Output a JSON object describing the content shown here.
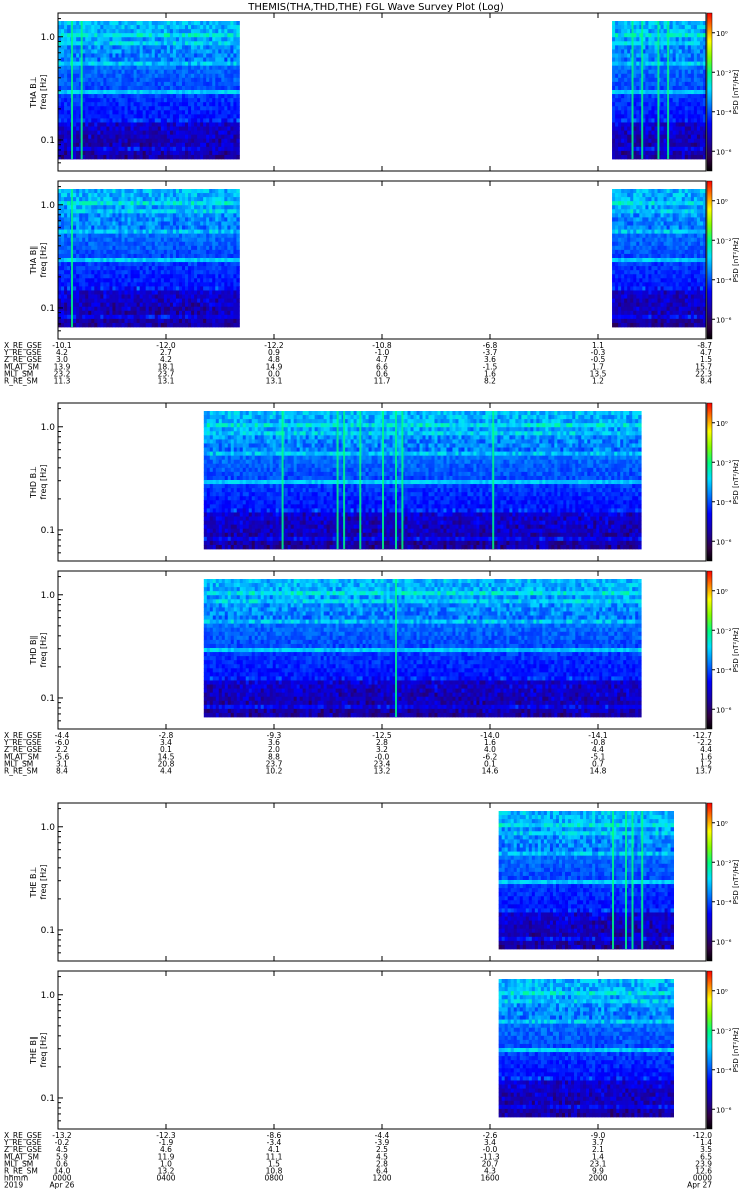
{
  "title": "THEMIS(THA,THD,THE) FGL Wave Survey Plot (Log)",
  "chart_data": {
    "type": "heatmap",
    "title": "THEMIS(THA,THD,THE) FGL Wave Survey Plot (Log)",
    "ylim": [
      0.05,
      1.7
    ],
    "log_y": true,
    "colorbar_lim": [
      1e-07,
      10.0
    ],
    "colorbar_log": true,
    "colorbar_label": "PSD [nT²/Hz]",
    "time_label_row": "hhmm",
    "time_ticks": [
      "0000",
      "0400",
      "0800",
      "1200",
      "1600",
      "2000",
      "0000"
    ],
    "date_labels": {
      "start_year": "2019",
      "start": "Apr 26",
      "end": "Apr 27"
    },
    "groups": [
      {
        "probe": "THA",
        "panels": [
          {
            "label": "THA B⊥",
            "ylabel": "freq [Hz]",
            "yticks": [
              "1.0",
              "0.1"
            ],
            "cbticks": [
              "10⁰",
              "10⁻²",
              "10⁻⁴",
              "10⁻⁶"
            ],
            "data_ranges": [
              [
                0.0,
                0.28
              ],
              [
                0.855,
                1.0
              ]
            ],
            "bright_lines": [
              0.02,
              0.035,
              0.815,
              0.885,
              0.9,
              0.925,
              0.94
            ]
          },
          {
            "label": "THA B∥",
            "ylabel": "freq [Hz]",
            "yticks": [
              "1.0",
              "0.1"
            ],
            "cbticks": [
              "10⁰",
              "10⁻²",
              "10⁻⁴",
              "10⁻⁶"
            ],
            "data_ranges": [
              [
                0.0,
                0.28
              ],
              [
                0.855,
                1.0
              ]
            ],
            "bright_lines": [
              0.02
            ]
          }
        ],
        "ephem": [
          {
            "name": "X_RE_GSE",
            "values": [
              "-10.1",
              "-12.0",
              "-12.2",
              "-10.8",
              "-6.8",
              "1.1",
              "-8.7"
            ]
          },
          {
            "name": "Y_RE_GSE",
            "values": [
              "4.2",
              "2.7",
              "0.9",
              "-1.0",
              "-3.7",
              "-0.3",
              "4.7"
            ]
          },
          {
            "name": "Z_RE_GSE",
            "values": [
              "3.0",
              "4.2",
              "4.8",
              "4.7",
              "3.6",
              "-0.5",
              "1.5"
            ]
          },
          {
            "name": "MLAT_SM",
            "values": [
              "13.9",
              "18.1",
              "14.9",
              "6.6",
              "-1.5",
              "1.7",
              "15.7"
            ]
          },
          {
            "name": "MLT_SM",
            "values": [
              "23.2",
              "23.7",
              "0.0",
              "0.6",
              "1.6",
              "13.5",
              "22.3"
            ]
          },
          {
            "name": "R_RE_SM",
            "values": [
              "11.3",
              "13.1",
              "13.1",
              "11.7",
              "8.2",
              "1.2",
              "8.4"
            ]
          }
        ]
      },
      {
        "probe": "THD",
        "panels": [
          {
            "label": "THD B⊥",
            "ylabel": "freq [Hz]",
            "yticks": [
              "1.0",
              "0.1"
            ],
            "cbticks": [
              "10⁰",
              "10⁻²",
              "10⁻⁴",
              "10⁻⁶"
            ],
            "data_ranges": [
              [
                0.225,
                0.9
              ]
            ],
            "bright_lines": [
              0.345,
              0.43,
              0.44,
              0.465,
              0.5,
              0.52,
              0.53,
              0.67
            ]
          },
          {
            "label": "THD B∥",
            "ylabel": "freq [Hz]",
            "yticks": [
              "1.0",
              "0.1"
            ],
            "cbticks": [
              "10⁰",
              "10⁻²",
              "10⁻⁴",
              "10⁻⁶"
            ],
            "data_ranges": [
              [
                0.225,
                0.9
              ]
            ],
            "bright_lines": [
              0.52
            ]
          }
        ],
        "ephem": [
          {
            "name": "X_RE_GSE",
            "values": [
              "-4.4",
              "-2.8",
              "-9.3",
              "-12.5",
              "-14.0",
              "-14.1",
              "-12.7"
            ]
          },
          {
            "name": "Y_RE_GSE",
            "values": [
              "-6.0",
              "3.4",
              "3.6",
              "2.8",
              "1.6",
              "-0.8",
              "-2.2"
            ]
          },
          {
            "name": "Z_RE_GSE",
            "values": [
              "2.2",
              "0.1",
              "2.0",
              "3.2",
              "4.0",
              "4.4",
              "4.4"
            ]
          },
          {
            "name": "MLAT_SM",
            "values": [
              "-5.6",
              "14.5",
              "8.8",
              "-0.0",
              "-6.2",
              "-5.1",
              "1.6"
            ]
          },
          {
            "name": "MLT_SM",
            "values": [
              "3.1",
              "20.8",
              "23.7",
              "23.4",
              "0.1",
              "0.7",
              "1.2"
            ]
          },
          {
            "name": "R_RE_SM",
            "values": [
              "8.4",
              "4.4",
              "10.2",
              "13.2",
              "14.6",
              "14.8",
              "13.7"
            ]
          }
        ]
      },
      {
        "probe": "THE",
        "panels": [
          {
            "label": "THE B⊥",
            "ylabel": "freq [Hz]",
            "yticks": [
              "1.0",
              "0.1"
            ],
            "cbticks": [
              "10⁰",
              "10⁻²",
              "10⁻⁴",
              "10⁻⁶"
            ],
            "data_ranges": [
              [
                0.68,
                0.95
              ]
            ],
            "bright_lines": [
              0.855,
              0.875,
              0.885,
              0.9
            ]
          },
          {
            "label": "THE B∥",
            "ylabel": "freq [Hz]",
            "yticks": [
              "1.0",
              "0.1"
            ],
            "cbticks": [
              "10⁰",
              "10⁻²",
              "10⁻⁴",
              "10⁻⁶"
            ],
            "data_ranges": [
              [
                0.68,
                0.95
              ]
            ],
            "bright_lines": []
          }
        ],
        "ephem": [
          {
            "name": "X_RE_GSE",
            "values": [
              "-13.2",
              "-12.3",
              "-8.6",
              "-4.4",
              "-2.6",
              "-9.0",
              "-12.0"
            ]
          },
          {
            "name": "Y_RE_GSE",
            "values": [
              "-0.2",
              "-1.9",
              "-3.4",
              "-3.9",
              "3.4",
              "3.7",
              "1.4"
            ]
          },
          {
            "name": "Z_RE_GSE",
            "values": [
              "4.5",
              "4.6",
              "4.1",
              "2.5",
              "-0.0",
              "2.1",
              "3.5"
            ]
          },
          {
            "name": "MLAT_SM",
            "values": [
              "5.9",
              "11.9",
              "11.1",
              "4.5",
              "-11.3",
              "1.4",
              "6.5"
            ]
          },
          {
            "name": "MLT_SM",
            "values": [
              "0.6",
              "1.0",
              "1.5",
              "2.8",
              "20.7",
              "23.1",
              "23.9"
            ]
          },
          {
            "name": "R_RE_SM",
            "values": [
              "14.0",
              "13.2",
              "10.8",
              "6.4",
              "4.3",
              "9.9",
              "12.6"
            ]
          }
        ]
      }
    ]
  }
}
